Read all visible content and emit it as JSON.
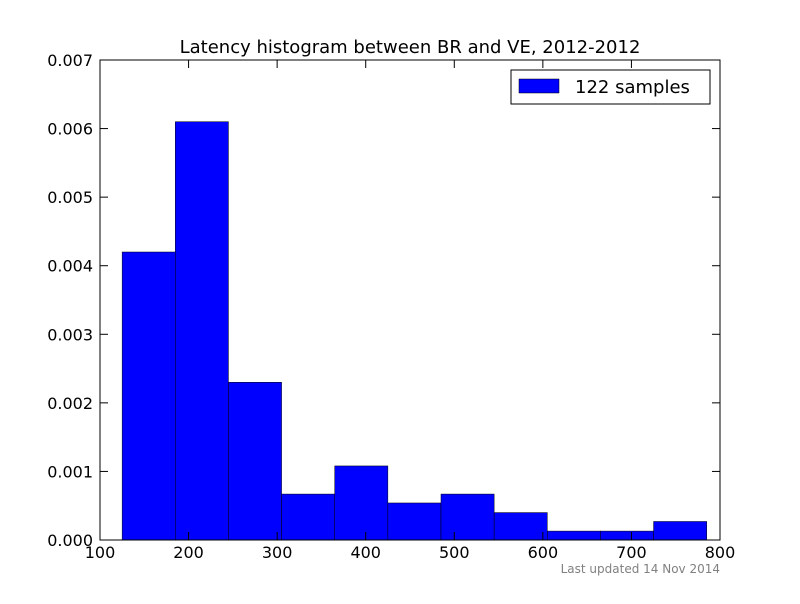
{
  "chart_data": {
    "type": "bar",
    "title": "Latency histogram between BR and VE, 2012-2012",
    "xlabel": "",
    "ylabel": "",
    "xlim": [
      100,
      800
    ],
    "ylim": [
      0,
      0.007
    ],
    "x_ticks": [
      100,
      200,
      300,
      400,
      500,
      600,
      700,
      800
    ],
    "y_ticks": [
      0.0,
      0.001,
      0.002,
      0.003,
      0.004,
      0.005,
      0.006,
      0.007
    ],
    "x_tick_labels": [
      "100",
      "200",
      "300",
      "400",
      "500",
      "600",
      "700",
      "800"
    ],
    "y_tick_labels": [
      "0.000",
      "0.001",
      "0.002",
      "0.003",
      "0.004",
      "0.005",
      "0.006",
      "0.007"
    ],
    "bin_edges": [
      125,
      185,
      245,
      305,
      365,
      425,
      485,
      545,
      605,
      665,
      725,
      785
    ],
    "values": [
      0.0042,
      0.0061,
      0.0023,
      0.00067,
      0.00108,
      0.00054,
      0.00067,
      0.0004,
      0.00013,
      0.00013,
      0.00027
    ],
    "series": [
      {
        "name": "122 samples",
        "color": "#0000ff"
      }
    ],
    "legend": {
      "position": "top-right",
      "label": "122 samples"
    },
    "grid": false
  },
  "footer": {
    "last_updated": "Last updated 14 Nov 2014"
  }
}
